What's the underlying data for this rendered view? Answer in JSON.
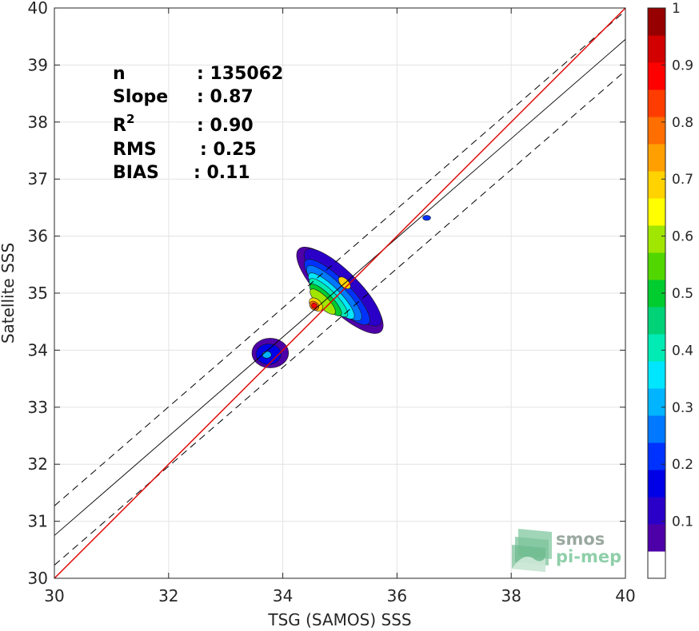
{
  "chart_data": {
    "type": "contour",
    "xlabel": "TSG (SAMOS) SSS",
    "ylabel": "Satellite SSS",
    "xlim": [
      30,
      40
    ],
    "ylim": [
      30,
      40
    ],
    "xticks": [
      30,
      32,
      34,
      36,
      38,
      40
    ],
    "yticks": [
      30,
      31,
      32,
      33,
      34,
      35,
      36,
      37,
      38,
      39,
      40
    ],
    "grid": true,
    "stats": [
      {
        "label": "n",
        "value": ": 135062"
      },
      {
        "label": "Slope",
        "value": ": 0.87"
      },
      {
        "label": "R",
        "sup": "2",
        "value": ": 0.90"
      },
      {
        "label": "RMS",
        "value": ": 0.25"
      },
      {
        "label": "BIAS",
        "value": ": 0.11"
      }
    ],
    "lines": {
      "identity": {
        "color": "#e00000",
        "points": [
          [
            30,
            30
          ],
          [
            40,
            40
          ]
        ]
      },
      "fit": {
        "color": "#000000",
        "style": "solid",
        "points": [
          [
            30,
            30.75
          ],
          [
            40,
            39.45
          ]
        ]
      },
      "fit_upper": {
        "color": "#000000",
        "style": "dashed",
        "points": [
          [
            30,
            31.27
          ],
          [
            40,
            39.95
          ]
        ]
      },
      "fit_lower": {
        "color": "#000000",
        "style": "dashed",
        "points": [
          [
            30,
            30.23
          ],
          [
            40,
            38.9
          ]
        ]
      }
    },
    "density_peaks": [
      {
        "x": 34.55,
        "y": 34.78,
        "value": 1.0
      },
      {
        "x": 35.08,
        "y": 35.18,
        "value": 0.72
      },
      {
        "x": 33.72,
        "y": 33.92,
        "value": 0.32
      },
      {
        "x": 36.52,
        "y": 36.32,
        "value": 0.2
      }
    ],
    "colorbar": {
      "range": [
        0,
        1
      ],
      "ticks": [
        "0.1",
        "0.2",
        "0.3",
        "0.4",
        "0.5",
        "0.6",
        "0.7",
        "0.8",
        "0.9",
        "1"
      ],
      "colors": [
        "#ffffff",
        "#4e00a8",
        "#2a00c8",
        "#0000e6",
        "#0032ff",
        "#0078ff",
        "#00b4ff",
        "#00e6ff",
        "#00ebb4",
        "#00d278",
        "#00cc30",
        "#52d600",
        "#a0e600",
        "#ffff00",
        "#ffd200",
        "#ffa000",
        "#ff6e00",
        "#ff3c00",
        "#ff0000",
        "#d20000",
        "#960000"
      ]
    }
  },
  "logo": {
    "line1": "smos",
    "line2": "pi-mep"
  }
}
